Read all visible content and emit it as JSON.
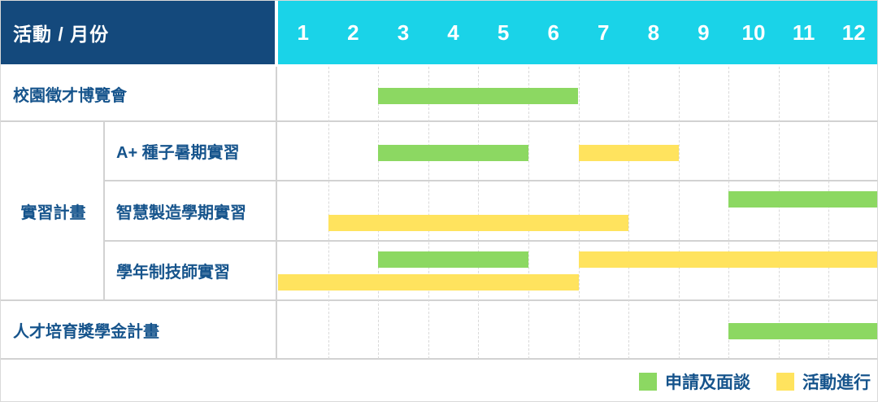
{
  "header": {
    "corner_label": "活動 / 月份",
    "months": [
      "1",
      "2",
      "3",
      "4",
      "5",
      "6",
      "7",
      "8",
      "9",
      "10",
      "11",
      "12"
    ]
  },
  "colors": {
    "header_bg": "#14497C",
    "months_bg": "#1AD3E8",
    "label_text": "#16548C",
    "grid_solid": "#d2d2d2",
    "grid_dashed": "#d9d9d9",
    "bar_apply": "#8CD862",
    "bar_active": "#FFE35E"
  },
  "chart_data": {
    "type": "gantt",
    "x_axis": {
      "unit": "month",
      "ticks": [
        1,
        2,
        3,
        4,
        5,
        6,
        7,
        8,
        9,
        10,
        11,
        12
      ]
    },
    "groups": [
      {
        "label": "實習計畫",
        "from_row": 2,
        "to_row": 4
      }
    ],
    "rows": [
      {
        "label": "校園徵才博覽會",
        "indent": false,
        "bars": [
          {
            "type": "apply",
            "start": 3,
            "end": 6,
            "lane": "center"
          }
        ]
      },
      {
        "label": "A+ 種子暑期實習",
        "indent": true,
        "bars": [
          {
            "type": "apply",
            "start": 3,
            "end": 5,
            "lane": "center"
          },
          {
            "type": "active",
            "start": 7,
            "end": 8,
            "lane": "center"
          }
        ]
      },
      {
        "label": "智慧製造學期實習",
        "indent": true,
        "bars": [
          {
            "type": "apply",
            "start": 10,
            "end": 12,
            "lane": "top"
          },
          {
            "type": "active",
            "start": 2,
            "end": 7,
            "lane": "bottom"
          }
        ]
      },
      {
        "label": "學年制技師實習",
        "indent": true,
        "bars": [
          {
            "type": "apply",
            "start": 3,
            "end": 5,
            "lane": "top"
          },
          {
            "type": "active",
            "start": 7,
            "end": 12,
            "lane": "top"
          },
          {
            "type": "active",
            "start": 1,
            "end": 6,
            "lane": "bottom"
          }
        ]
      },
      {
        "label": "人才培育獎學金計畫",
        "indent": false,
        "bars": [
          {
            "type": "apply",
            "start": 10,
            "end": 12,
            "lane": "center"
          }
        ]
      }
    ],
    "legend": [
      {
        "type": "apply",
        "label": "申請及面談"
      },
      {
        "type": "active",
        "label": "活動進行"
      }
    ]
  }
}
